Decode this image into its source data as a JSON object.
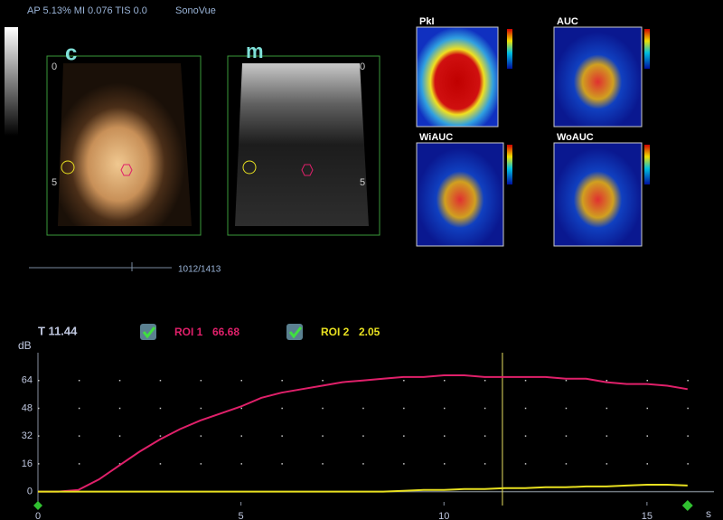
{
  "header": {
    "status": "AP 5.13%  MI 0.076 TIS 0.0",
    "agent": "SonoVue"
  },
  "panels": {
    "contrast_label": "c",
    "mode_label": "m",
    "depth_top": "0",
    "depth_mid": "5"
  },
  "maps": [
    "PkI",
    "AUC",
    "WiAUC",
    "WoAUC"
  ],
  "slider": {
    "frame": "1012/1413"
  },
  "chart_data": {
    "type": "line",
    "cursor_label": "T 11.44",
    "cursor_x": 11.44,
    "y_label": "dB",
    "x_label": "s",
    "x": [
      0,
      0.5,
      1,
      1.5,
      2,
      2.5,
      3,
      3.5,
      4,
      4.5,
      5,
      5.5,
      6,
      6.5,
      7,
      7.5,
      8,
      8.5,
      9,
      9.5,
      10,
      10.5,
      11,
      11.5,
      12,
      12.5,
      13,
      13.5,
      14,
      14.5,
      15,
      15.5,
      16
    ],
    "series": [
      {
        "name": "ROI 1",
        "color": "#e0206a",
        "cursor_value": 66.68,
        "values": [
          0,
          0,
          1,
          7,
          15,
          23,
          30,
          36,
          41,
          45,
          49,
          54,
          57,
          59,
          61,
          63,
          64,
          65,
          66,
          66,
          67,
          67,
          66,
          66,
          66,
          66,
          65,
          65,
          63,
          62,
          62,
          61,
          59
        ]
      },
      {
        "name": "ROI 2",
        "color": "#e8e020",
        "cursor_value": 2.05,
        "values": [
          0,
          0,
          0,
          0,
          0,
          0,
          0,
          0,
          0,
          0,
          0,
          0,
          0,
          0,
          0,
          0,
          0,
          0,
          0.5,
          1,
          1,
          1.5,
          1.5,
          2,
          2,
          2.5,
          2.5,
          3,
          3,
          3.5,
          4,
          4,
          3.5
        ]
      }
    ],
    "xlim": [
      0,
      16.65
    ],
    "ylim": [
      -8,
      80
    ],
    "xticks": [
      0,
      5,
      10,
      15
    ],
    "yticks": [
      0,
      16,
      32,
      48,
      64
    ],
    "grid": true
  }
}
